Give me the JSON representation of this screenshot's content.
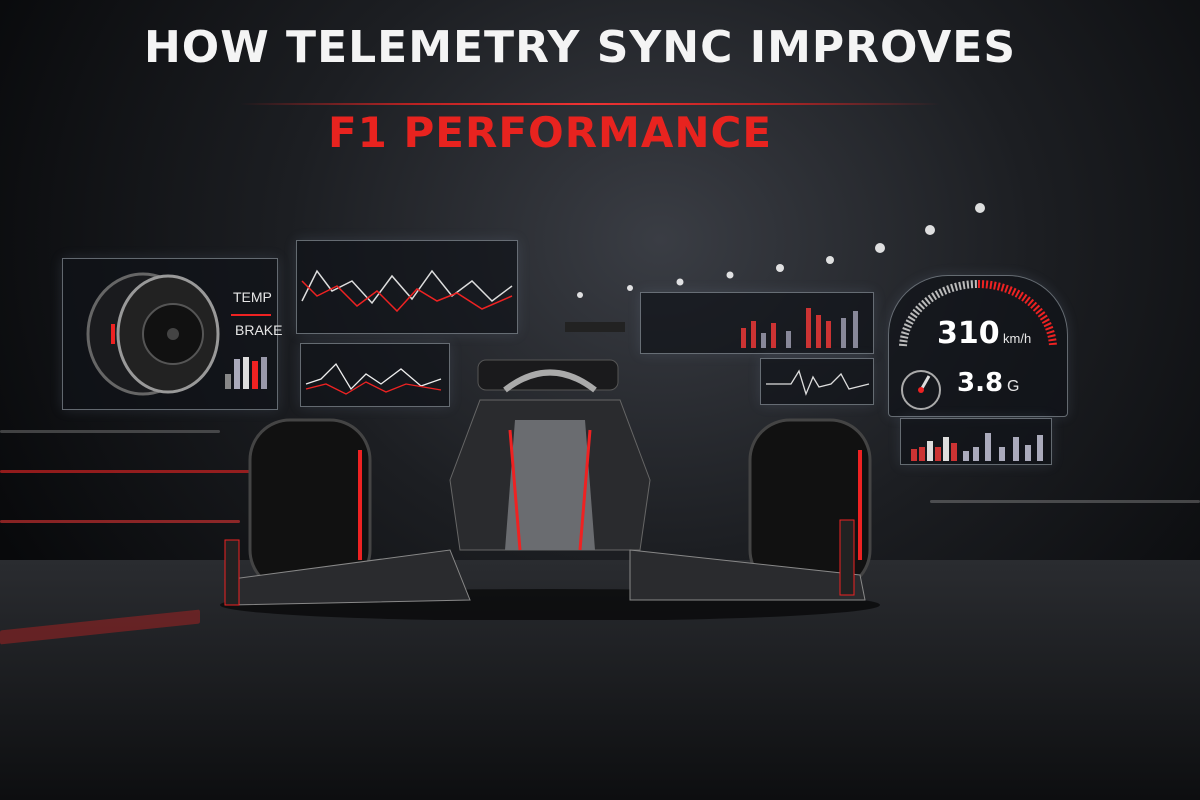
{
  "headline": {
    "line1": "HOW TELEMETRY SYNC IMPROVES",
    "line2": "F1 PERFORMANCE"
  },
  "tire_panel": {
    "label_temp": "TEMP",
    "label_brake": "BRAKE"
  },
  "dashboard": {
    "speed_value": "310",
    "speed_unit": "km/h",
    "g_value": "3.8",
    "g_unit": "G"
  },
  "colors": {
    "accent": "#e8231f",
    "background": "#0b0c0e",
    "text": "#f4f4f4"
  }
}
